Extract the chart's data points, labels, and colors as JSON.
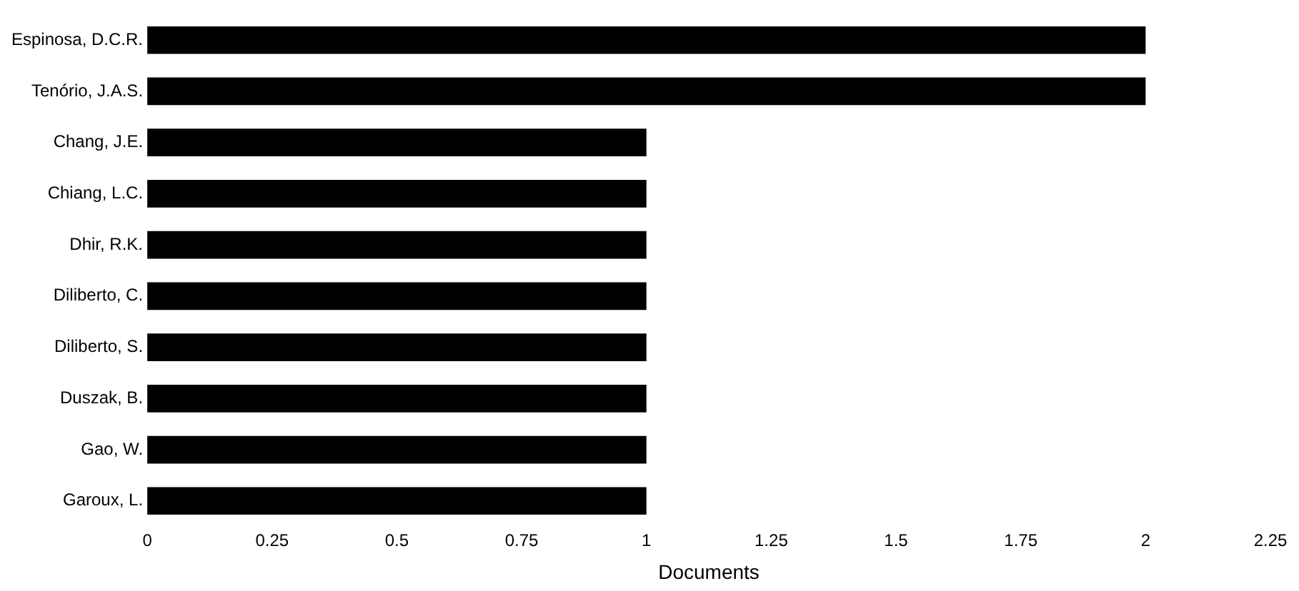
{
  "chart_data": {
    "type": "bar",
    "orientation": "horizontal",
    "xlabel": "Documents",
    "categories": [
      "Espinosa, D.C.R.",
      "Tenório, J.A.S.",
      "Chang, J.E.",
      "Chiang, L.C.",
      "Dhir, R.K.",
      "Diliberto, C.",
      "Diliberto, S.",
      "Duszak, B.",
      "Gao, W.",
      "Garoux, L."
    ],
    "values": [
      2,
      2,
      1,
      1,
      1,
      1,
      1,
      1,
      1,
      1
    ],
    "color": "#000000",
    "xlim": [
      0,
      2.25
    ],
    "xticks": [
      0,
      0.25,
      0.5,
      0.75,
      1,
      1.25,
      1.5,
      1.75,
      2,
      2.25
    ],
    "grid": false,
    "legend": false
  }
}
